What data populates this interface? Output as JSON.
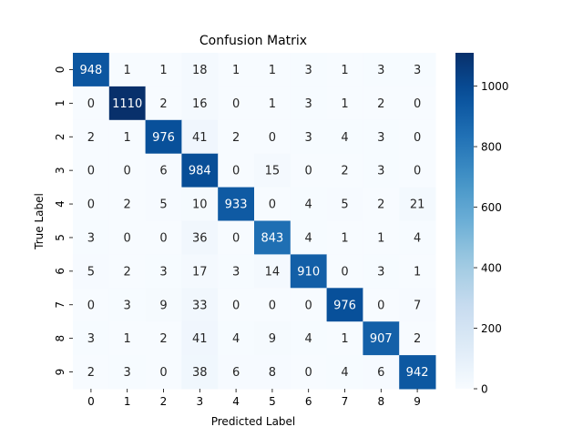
{
  "chart_data": {
    "type": "heatmap",
    "title": "Confusion Matrix",
    "xlabel": "Predicted Label",
    "ylabel": "True Label",
    "x_categories": [
      "0",
      "1",
      "2",
      "3",
      "4",
      "5",
      "6",
      "7",
      "8",
      "9"
    ],
    "y_categories": [
      "0",
      "1",
      "2",
      "3",
      "4",
      "5",
      "6",
      "7",
      "8",
      "9"
    ],
    "values": [
      [
        948,
        1,
        1,
        18,
        1,
        1,
        3,
        1,
        3,
        3
      ],
      [
        0,
        1110,
        2,
        16,
        0,
        1,
        3,
        1,
        2,
        0
      ],
      [
        2,
        1,
        976,
        41,
        2,
        0,
        3,
        4,
        3,
        0
      ],
      [
        0,
        0,
        6,
        984,
        0,
        15,
        0,
        2,
        3,
        0
      ],
      [
        0,
        2,
        5,
        10,
        933,
        0,
        4,
        5,
        2,
        21
      ],
      [
        3,
        0,
        0,
        36,
        0,
        843,
        4,
        1,
        1,
        4
      ],
      [
        5,
        2,
        3,
        17,
        3,
        14,
        910,
        0,
        3,
        1
      ],
      [
        0,
        3,
        9,
        33,
        0,
        0,
        0,
        976,
        0,
        7
      ],
      [
        3,
        1,
        2,
        41,
        4,
        9,
        4,
        1,
        907,
        2
      ],
      [
        2,
        3,
        0,
        38,
        6,
        8,
        0,
        4,
        6,
        942
      ]
    ],
    "colorbar": {
      "min": 0,
      "max": 1110,
      "ticks": [
        0,
        200,
        400,
        600,
        800,
        1000
      ],
      "colormap": "Blues",
      "low_color": "#f7fbff",
      "high_color": "#08306b"
    }
  }
}
